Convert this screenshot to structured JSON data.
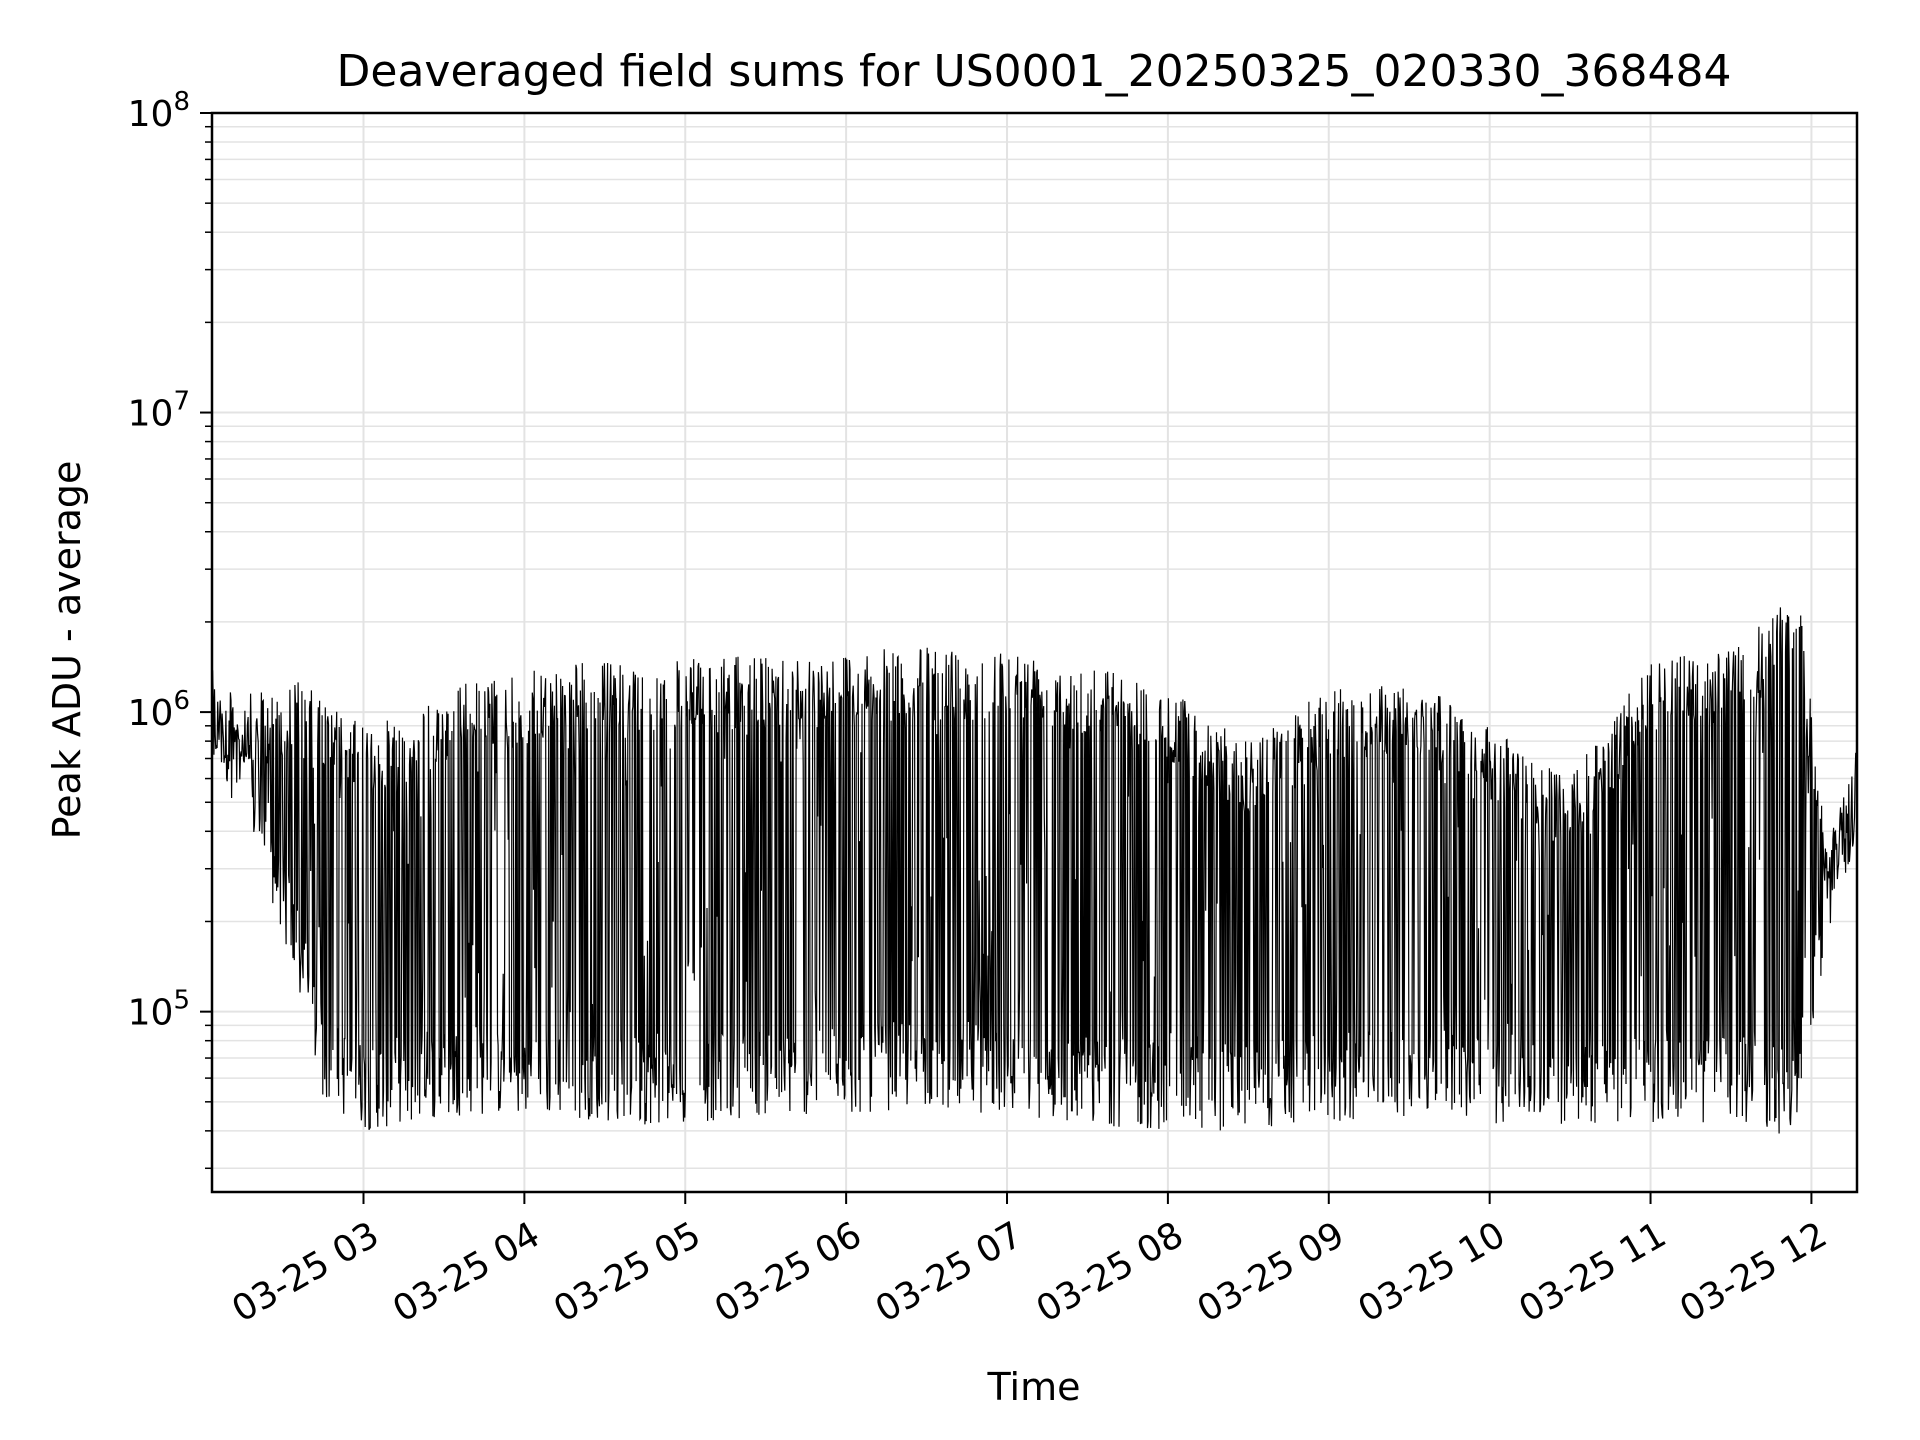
{
  "chart_data": {
    "type": "line",
    "title": "Deaveraged field sums for US0001_20250325_020330_368484",
    "xlabel": "Time",
    "ylabel": "Peak ADU - average",
    "y_scale": "log",
    "ylim": [
      25000,
      100000000
    ],
    "xlim": [
      "2025-03-25 02:03:30",
      "2025-03-25 12:17:00"
    ],
    "x_ticks": [
      {
        "t": "2025-03-25 03:00",
        "label": "03-25 03"
      },
      {
        "t": "2025-03-25 04:00",
        "label": "03-25 04"
      },
      {
        "t": "2025-03-25 05:00",
        "label": "03-25 05"
      },
      {
        "t": "2025-03-25 06:00",
        "label": "03-25 06"
      },
      {
        "t": "2025-03-25 07:00",
        "label": "03-25 07"
      },
      {
        "t": "2025-03-25 08:00",
        "label": "03-25 08"
      },
      {
        "t": "2025-03-25 09:00",
        "label": "03-25 09"
      },
      {
        "t": "2025-03-25 10:00",
        "label": "03-25 10"
      },
      {
        "t": "2025-03-25 11:00",
        "label": "03-25 11"
      },
      {
        "t": "2025-03-25 12:00",
        "label": "03-25 12"
      }
    ],
    "y_ticks": [
      {
        "v": 100000,
        "base": "10",
        "exp": "5"
      },
      {
        "v": 1000000,
        "base": "10",
        "exp": "6"
      },
      {
        "v": 10000000,
        "base": "10",
        "exp": "7"
      },
      {
        "v": 100000000,
        "base": "10",
        "exp": "8"
      }
    ],
    "grid": true,
    "line_color": "#000000",
    "grid_color": "#e3e3e3",
    "series": [
      {
        "envelope": [
          {
            "x": "2025-03-25 02:03:30",
            "upper": 1200000,
            "lower": 700000
          },
          {
            "x": "2025-03-25 02:20",
            "upper": 1150000,
            "lower": 350000
          },
          {
            "x": "2025-03-25 02:35",
            "upper": 1300000,
            "lower": 120000
          },
          {
            "x": "2025-03-25 02:45",
            "upper": 1100000,
            "lower": 50000
          },
          {
            "x": "2025-03-25 03:00",
            "upper": 900000,
            "lower": 40000
          },
          {
            "x": "2025-03-25 03:20",
            "upper": 1000000,
            "lower": 42000
          },
          {
            "x": "2025-03-25 03:35",
            "upper": 1250000,
            "lower": 45000
          },
          {
            "x": "2025-03-25 04:00",
            "upper": 1350000,
            "lower": 45000
          },
          {
            "x": "2025-03-25 04:20",
            "upper": 1500000,
            "lower": 44000
          },
          {
            "x": "2025-03-25 04:40",
            "upper": 1450000,
            "lower": 42000
          },
          {
            "x": "2025-03-25 05:00",
            "upper": 1500000,
            "lower": 42000
          },
          {
            "x": "2025-03-25 05:30",
            "upper": 1550000,
            "lower": 45000
          },
          {
            "x": "2025-03-25 06:00",
            "upper": 1600000,
            "lower": 45000
          },
          {
            "x": "2025-03-25 06:30",
            "upper": 1650000,
            "lower": 48000
          },
          {
            "x": "2025-03-25 07:00",
            "upper": 1650000,
            "lower": 45000
          },
          {
            "x": "2025-03-25 07:30",
            "upper": 1500000,
            "lower": 42000
          },
          {
            "x": "2025-03-25 08:00",
            "upper": 1200000,
            "lower": 40000
          },
          {
            "x": "2025-03-25 08:30",
            "upper": 800000,
            "lower": 40000
          },
          {
            "x": "2025-03-25 09:00",
            "upper": 1200000,
            "lower": 42000
          },
          {
            "x": "2025-03-25 09:30",
            "upper": 1300000,
            "lower": 45000
          },
          {
            "x": "2025-03-25 10:00",
            "upper": 900000,
            "lower": 42000
          },
          {
            "x": "2025-03-25 10:30",
            "upper": 600000,
            "lower": 42000
          },
          {
            "x": "2025-03-25 11:00",
            "upper": 1500000,
            "lower": 42000
          },
          {
            "x": "2025-03-25 11:30",
            "upper": 1600000,
            "lower": 42000
          },
          {
            "x": "2025-03-25 11:55",
            "upper": 2600000,
            "lower": 38000
          },
          {
            "x": "2025-03-25 12:05",
            "upper": 400000,
            "lower": 150000
          },
          {
            "x": "2025-03-25 12:17:00",
            "upper": 600000,
            "lower": 400000
          }
        ]
      }
    ]
  }
}
